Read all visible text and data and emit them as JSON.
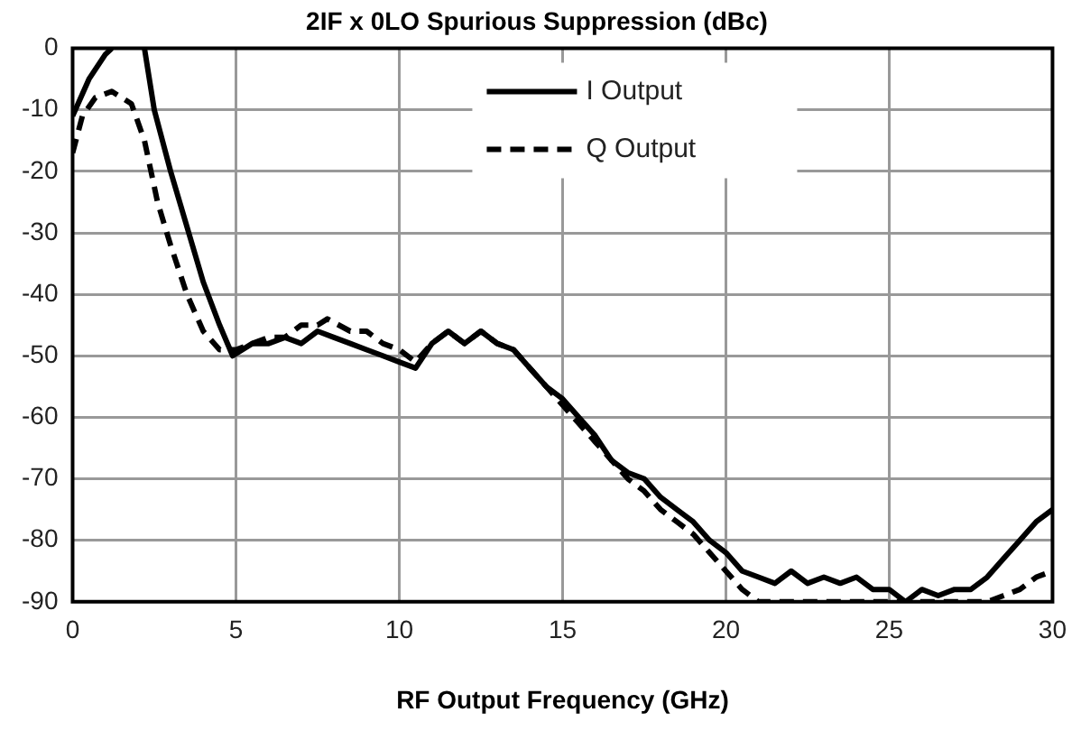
{
  "chart_data": {
    "type": "line",
    "title": "2IF x 0LO Spurious Suppression (dBc)",
    "xlabel": "RF Output Frequency (GHz)",
    "xlim": [
      0,
      30
    ],
    "xticks": [
      0,
      5,
      10,
      15,
      20,
      25,
      30
    ],
    "ylim": [
      -90,
      0
    ],
    "yticks": [
      -90,
      -80,
      -70,
      -60,
      -50,
      -40,
      -30,
      -20,
      -10,
      0
    ],
    "grid": true,
    "legend": "top",
    "marker": "none",
    "series": [
      {
        "name": "I Output",
        "color": "#000000",
        "line_style": "solid",
        "x": [
          0,
          0.5,
          1,
          1.2,
          1.7,
          2.2,
          2.5,
          3,
          3.5,
          4,
          4.5,
          4.9,
          5.5,
          6,
          6.5,
          7,
          7.5,
          8,
          8.5,
          9,
          9.5,
          10,
          10.5,
          11,
          11.5,
          12,
          12.5,
          13,
          13.5,
          14,
          14.5,
          15,
          15.5,
          16,
          16.5,
          17,
          17.5,
          18,
          18.5,
          19,
          19.5,
          20,
          20.5,
          21,
          21.5,
          22,
          22.5,
          23,
          23.5,
          24,
          24.5,
          25,
          25.5,
          26,
          26.5,
          27,
          27.5,
          28,
          28.5,
          29,
          29.5,
          30
        ],
        "values": [
          -11,
          -5,
          -1,
          0,
          null,
          0,
          -10,
          -20,
          -29,
          -38,
          -45,
          -50,
          -48,
          -48,
          -47,
          -48,
          -46,
          -47,
          -48,
          -49,
          -50,
          -51,
          -52,
          -48,
          -46,
          -48,
          -46,
          -48,
          -49,
          -52,
          -55,
          -57,
          -60,
          -63,
          -67,
          -69,
          -70,
          -73,
          -75,
          -77,
          -80,
          -82,
          -85,
          -86,
          -87,
          -85,
          -87,
          -86,
          -87,
          -86,
          -88,
          -88,
          -90,
          -88,
          -89,
          -88,
          -88,
          -86,
          -83,
          -80,
          -77,
          -75
        ]
      },
      {
        "name": "Q Output",
        "color": "#000000",
        "line_style": "dashed",
        "x": [
          0,
          0.3,
          0.7,
          1.2,
          1.8,
          2.2,
          2.6,
          3,
          3.5,
          4,
          4.5,
          5,
          5.5,
          6,
          6.5,
          7,
          7.5,
          7.8,
          8.5,
          9,
          9.5,
          10,
          10.5,
          11,
          11.5,
          12,
          12.5,
          13,
          13.5,
          14,
          14.5,
          15,
          15.5,
          16,
          16.5,
          17,
          17.5,
          18,
          18.5,
          19,
          19.5,
          20,
          20.5,
          21,
          22,
          23,
          24,
          25,
          26,
          27,
          28,
          28.5,
          29,
          29.5,
          30
        ],
        "values": [
          -17,
          -11,
          -8,
          -7,
          -9,
          -15,
          -25,
          -32,
          -40,
          -46,
          -49,
          -49,
          -48,
          -47,
          -47,
          -45,
          -45,
          -44,
          -46,
          -46,
          -48,
          -49,
          -51,
          -48,
          -46,
          -48,
          -46,
          -48,
          -49,
          -52,
          -55,
          -58,
          -61,
          -64,
          -67,
          -70,
          -72,
          -75,
          -77,
          -79,
          -82,
          -85,
          -88,
          -90,
          -90,
          -90,
          -90,
          -90,
          -90,
          -90,
          -90,
          -89,
          -88,
          -86,
          -85
        ]
      }
    ]
  }
}
